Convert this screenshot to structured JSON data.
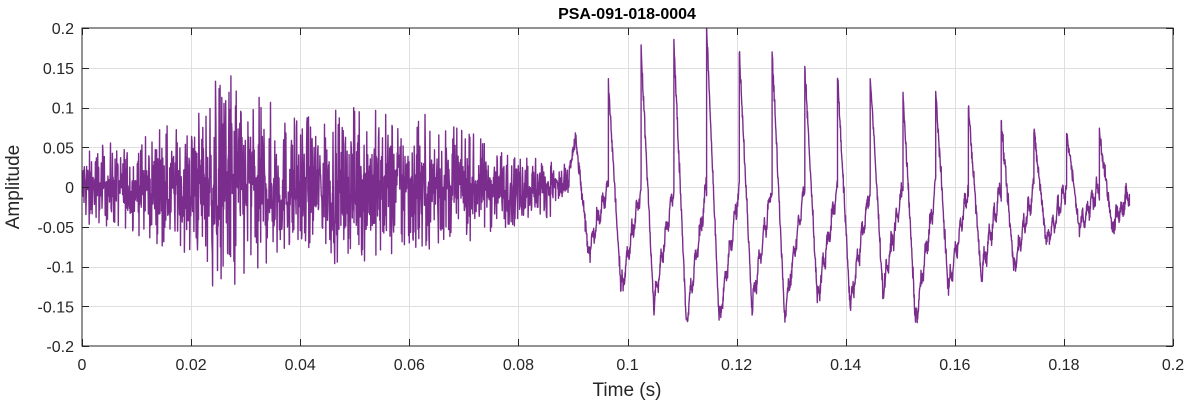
{
  "chart_data": {
    "type": "line",
    "title": "PSA-091-018-0004",
    "xlabel": "Time (s)",
    "ylabel": "Amplitude",
    "xlim": [
      0,
      0.2
    ],
    "ylim": [
      -0.2,
      0.2
    ],
    "xticks": [
      0,
      0.02,
      0.04,
      0.06,
      0.08,
      0.1,
      0.12,
      0.14,
      0.16,
      0.18,
      0.2
    ],
    "xtick_labels": [
      "0",
      "0.02",
      "0.04",
      "0.06",
      "0.08",
      "0.1",
      "0.12",
      "0.14",
      "0.16",
      "0.18",
      "0.2"
    ],
    "yticks": [
      0.2,
      0.15,
      0.1,
      0.05,
      0,
      -0.05,
      -0.1,
      -0.15,
      -0.2
    ],
    "ytick_labels": [
      "0.2",
      "0.15",
      "0.1",
      "0.05",
      "0",
      "-0.05",
      "-0.1",
      "-0.15",
      "-0.2"
    ],
    "grid": true,
    "line_color": "#7b2d8e",
    "signal_end_time": 0.192,
    "noisy_segment": {
      "start": 0,
      "end": 0.089
    },
    "noisy_envelope": {
      "time": [
        0,
        0.01,
        0.02,
        0.028,
        0.03,
        0.04,
        0.05,
        0.06,
        0.07,
        0.08,
        0.089
      ],
      "amplitude": [
        0.05,
        0.06,
        0.09,
        0.17,
        0.12,
        0.09,
        0.1,
        0.1,
        0.07,
        0.05,
        0.03
      ]
    },
    "voiced_peaks": {
      "time": [
        0.0905,
        0.0965,
        0.1025,
        0.1085,
        0.1145,
        0.1205,
        0.1265,
        0.1325,
        0.1385,
        0.1445,
        0.1505,
        0.1565,
        0.1625,
        0.1685,
        0.1745,
        0.1805,
        0.1865,
        0.192
      ],
      "max": [
        0.06,
        0.13,
        0.17,
        0.18,
        0.2,
        0.17,
        0.17,
        0.15,
        0.14,
        0.14,
        0.12,
        0.12,
        0.1,
        0.08,
        0.07,
        0.07,
        0.07,
        -0.02
      ],
      "min": [
        -0.08,
        -0.13,
        -0.15,
        -0.17,
        -0.17,
        -0.15,
        -0.16,
        -0.14,
        -0.15,
        -0.13,
        -0.17,
        -0.13,
        -0.11,
        -0.1,
        -0.07,
        -0.05,
        -0.05,
        -0.02
      ]
    }
  }
}
